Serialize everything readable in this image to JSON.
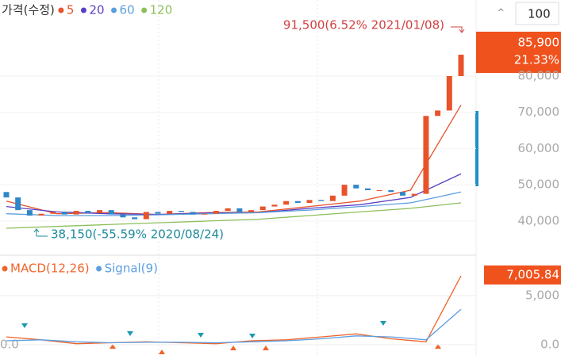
{
  "ui": {
    "zoom": "100"
  },
  "chart_data": [
    {
      "type": "candlestick",
      "title": "가격(수정)",
      "open": [
        48000,
        46500,
        43000,
        41500,
        42000,
        42500,
        41800,
        42800,
        42200,
        43000,
        41800,
        41000,
        40500,
        42500,
        42000,
        42800,
        42500,
        41800,
        42000,
        42800,
        43500,
        42500,
        43000,
        44000,
        44500,
        45500,
        45000,
        45800,
        45500,
        47000,
        50000,
        49000,
        48500,
        48500,
        48000,
        47000,
        47500,
        69000,
        70500,
        80000
      ],
      "close": [
        46500,
        43000,
        41500,
        42000,
        42500,
        41800,
        42800,
        42200,
        43000,
        41800,
        41000,
        40500,
        42500,
        42000,
        42800,
        42500,
        41800,
        42000,
        42800,
        43500,
        42500,
        43000,
        44000,
        44500,
        45500,
        45000,
        45800,
        45500,
        47000,
        50000,
        49000,
        48500,
        48500,
        48000,
        47000,
        47500,
        69000,
        70500,
        80000,
        85900
      ],
      "up_color": "#e8532b",
      "down_color": "#2f86c9",
      "series": [
        {
          "name": "5",
          "color": "#e8532b",
          "values": [
            45500,
            42000,
            42300,
            41800,
            42300,
            42500,
            44000,
            45500,
            48500,
            72000
          ]
        },
        {
          "name": "20",
          "color": "#5b3fc2",
          "values": [
            44000,
            42500,
            42000,
            41800,
            42200,
            42300,
            43500,
            44500,
            46500,
            53000
          ]
        },
        {
          "name": "60",
          "color": "#5b9fe0",
          "values": [
            42000,
            41500,
            41500,
            41700,
            42000,
            42300,
            43000,
            44000,
            45000,
            48000
          ]
        },
        {
          "name": "120",
          "color": "#8cbf5a",
          "values": [
            38000,
            38500,
            39000,
            39500,
            40000,
            40500,
            41500,
            42500,
            43500,
            45000
          ]
        }
      ],
      "ylim": [
        31000,
        101000
      ],
      "yticks": [
        {
          "value": 40000,
          "label": "40,000"
        },
        {
          "value": 50000,
          "label": "50,000"
        },
        {
          "value": 60000,
          "label": "60,000"
        },
        {
          "value": 70000,
          "label": "70,000"
        },
        {
          "value": 80000,
          "label": "80,000"
        }
      ],
      "annotations": [
        "91,500(6.52% 2021/01/08)",
        "38,150(-55.59% 2020/08/24)"
      ],
      "last_price_label": "85,900",
      "last_change_label": "21.33%"
    },
    {
      "type": "line",
      "series": [
        {
          "name": "MACD(12,26)",
          "color": "#f0642a",
          "values": [
            800,
            500,
            100,
            200,
            300,
            200,
            100,
            400,
            500,
            800,
            1100,
            600,
            300,
            7005.84
          ],
          "value_labels": [
            null,
            null,
            null,
            null,
            null,
            null,
            null,
            null,
            null,
            null,
            null,
            null,
            null,
            "7,005.84"
          ]
        },
        {
          "name": "Signal(9)",
          "color": "#5b9fe0",
          "values": [
            400,
            500,
            300,
            200,
            250,
            250,
            200,
            300,
            400,
            600,
            900,
            800,
            500,
            3600
          ]
        }
      ],
      "ylim": [
        -1130,
        8870
      ],
      "yticks": [
        {
          "value": 0,
          "label": "0.0"
        },
        {
          "value": 5000,
          "label": "5,000"
        }
      ]
    }
  ]
}
